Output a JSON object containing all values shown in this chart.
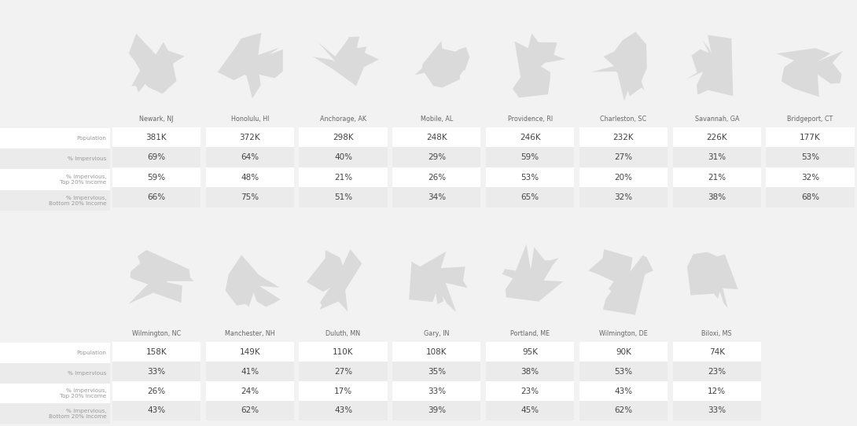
{
  "row1_cities": [
    {
      "name": "Newark, NJ",
      "population": "381K",
      "impervious": "69%",
      "top20": "59%",
      "bottom20": "66%"
    },
    {
      "name": "Honolulu, HI",
      "population": "372K",
      "impervious": "64%",
      "top20": "48%",
      "bottom20": "75%"
    },
    {
      "name": "Anchorage, AK",
      "population": "298K",
      "impervious": "40%",
      "top20": "21%",
      "bottom20": "51%"
    },
    {
      "name": "Mobile, AL",
      "population": "248K",
      "impervious": "29%",
      "top20": "26%",
      "bottom20": "34%"
    },
    {
      "name": "Providence, RI",
      "population": "246K",
      "impervious": "59%",
      "top20": "53%",
      "bottom20": "65%"
    },
    {
      "name": "Charleston, SC",
      "population": "232K",
      "impervious": "27%",
      "top20": "20%",
      "bottom20": "32%"
    },
    {
      "name": "Savannah, GA",
      "population": "226K",
      "impervious": "31%",
      "top20": "21%",
      "bottom20": "38%"
    },
    {
      "name": "Bridgeport, CT",
      "population": "177K",
      "impervious": "53%",
      "top20": "32%",
      "bottom20": "68%"
    }
  ],
  "row2_cities": [
    {
      "name": "Wilmington, NC",
      "population": "158K",
      "impervious": "33%",
      "top20": "26%",
      "bottom20": "43%"
    },
    {
      "name": "Manchester, NH",
      "population": "149K",
      "impervious": "41%",
      "top20": "24%",
      "bottom20": "62%"
    },
    {
      "name": "Duluth, MN",
      "population": "110K",
      "impervious": "27%",
      "top20": "17%",
      "bottom20": "43%"
    },
    {
      "name": "Gary, IN",
      "population": "108K",
      "impervious": "35%",
      "top20": "33%",
      "bottom20": "39%"
    },
    {
      "name": "Portland, ME",
      "population": "95K",
      "impervious": "38%",
      "top20": "23%",
      "bottom20": "45%"
    },
    {
      "name": "Wilmington, DE",
      "population": "90K",
      "impervious": "53%",
      "top20": "43%",
      "bottom20": "62%"
    },
    {
      "name": "Biloxi, MS",
      "population": "74K",
      "impervious": "23%",
      "top20": "12%",
      "bottom20": "33%"
    }
  ],
  "row_labels": [
    "Population",
    "% Impervious",
    "% Impervious,\nTop 20% Income",
    "% Impervious,\nBottom 20% Income"
  ],
  "bg_color": "#f2f2f2",
  "card_color": "#ffffff",
  "row_even_color": "#ffffff",
  "row_odd_color": "#ebebeb",
  "label_text_color": "#999999",
  "value_text_color": "#444444",
  "city_name_color": "#666666"
}
